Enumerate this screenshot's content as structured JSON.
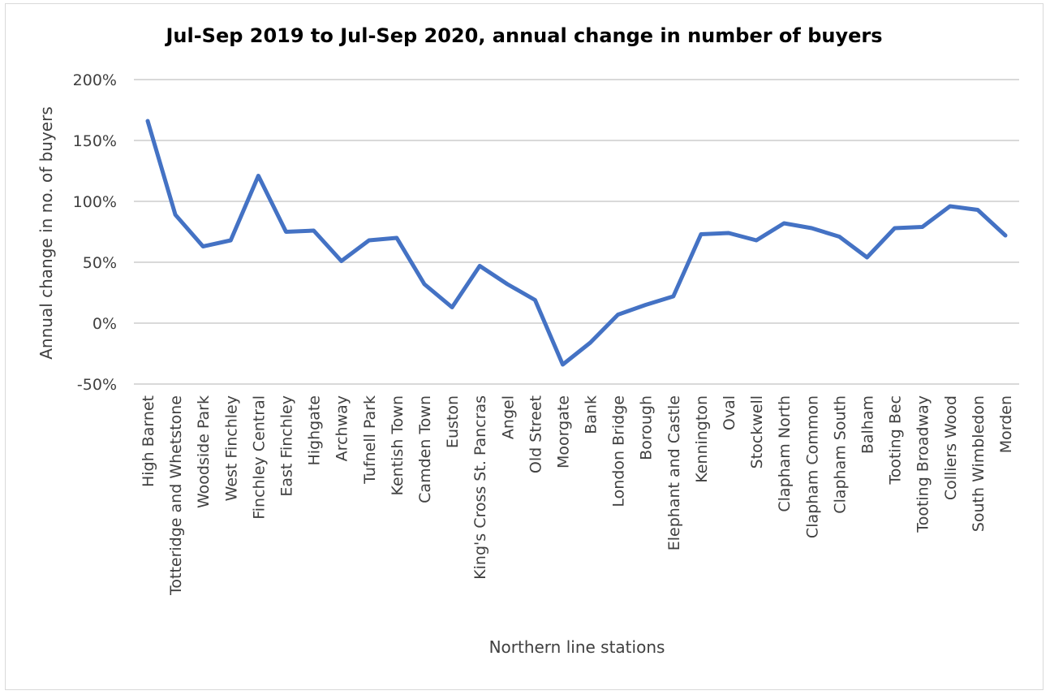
{
  "chart_data": {
    "type": "line",
    "title": "Jul-Sep 2019 to Jul-Sep 2020, annual change in number of buyers",
    "xlabel": "Northern line stations",
    "ylabel": "Annual change in no. of buyers",
    "ylim": [
      -50,
      200
    ],
    "yticks": [
      {
        "value": 200,
        "label": "200%"
      },
      {
        "value": 150,
        "label": "150%"
      },
      {
        "value": 100,
        "label": "100%"
      },
      {
        "value": 50,
        "label": "50%"
      },
      {
        "value": 0,
        "label": "0%"
      },
      {
        "value": -50,
        "label": "-50%"
      }
    ],
    "grid": true,
    "line_color": "#4472C4",
    "grid_color": "#d9d9d9",
    "categories": [
      "High Barnet",
      "Totteridge and Whetstone",
      "Woodside Park",
      "West Finchley",
      "Finchley Central",
      "East Finchley",
      "Highgate",
      "Archway",
      "Tufnell Park",
      "Kentish Town",
      "Camden Town",
      "Euston",
      "King's Cross St. Pancras",
      "Angel",
      "Old Street",
      "Moorgate",
      "Bank",
      "London Bridge",
      "Borough",
      "Elephant and Castle",
      "Kennington",
      "Oval",
      "Stockwell",
      "Clapham North",
      "Clapham Common",
      "Clapham South",
      "Balham",
      "Tooting Bec",
      "Tooting Broadway",
      "Colliers Wood",
      "South Wimbledon",
      "Morden"
    ],
    "values": [
      166,
      89,
      63,
      68,
      121,
      75,
      76,
      51,
      68,
      70,
      32,
      13,
      47,
      32,
      19,
      -34,
      -16,
      7,
      15,
      22,
      73,
      74,
      68,
      82,
      78,
      71,
      54,
      78,
      79,
      96,
      93,
      72
    ]
  }
}
